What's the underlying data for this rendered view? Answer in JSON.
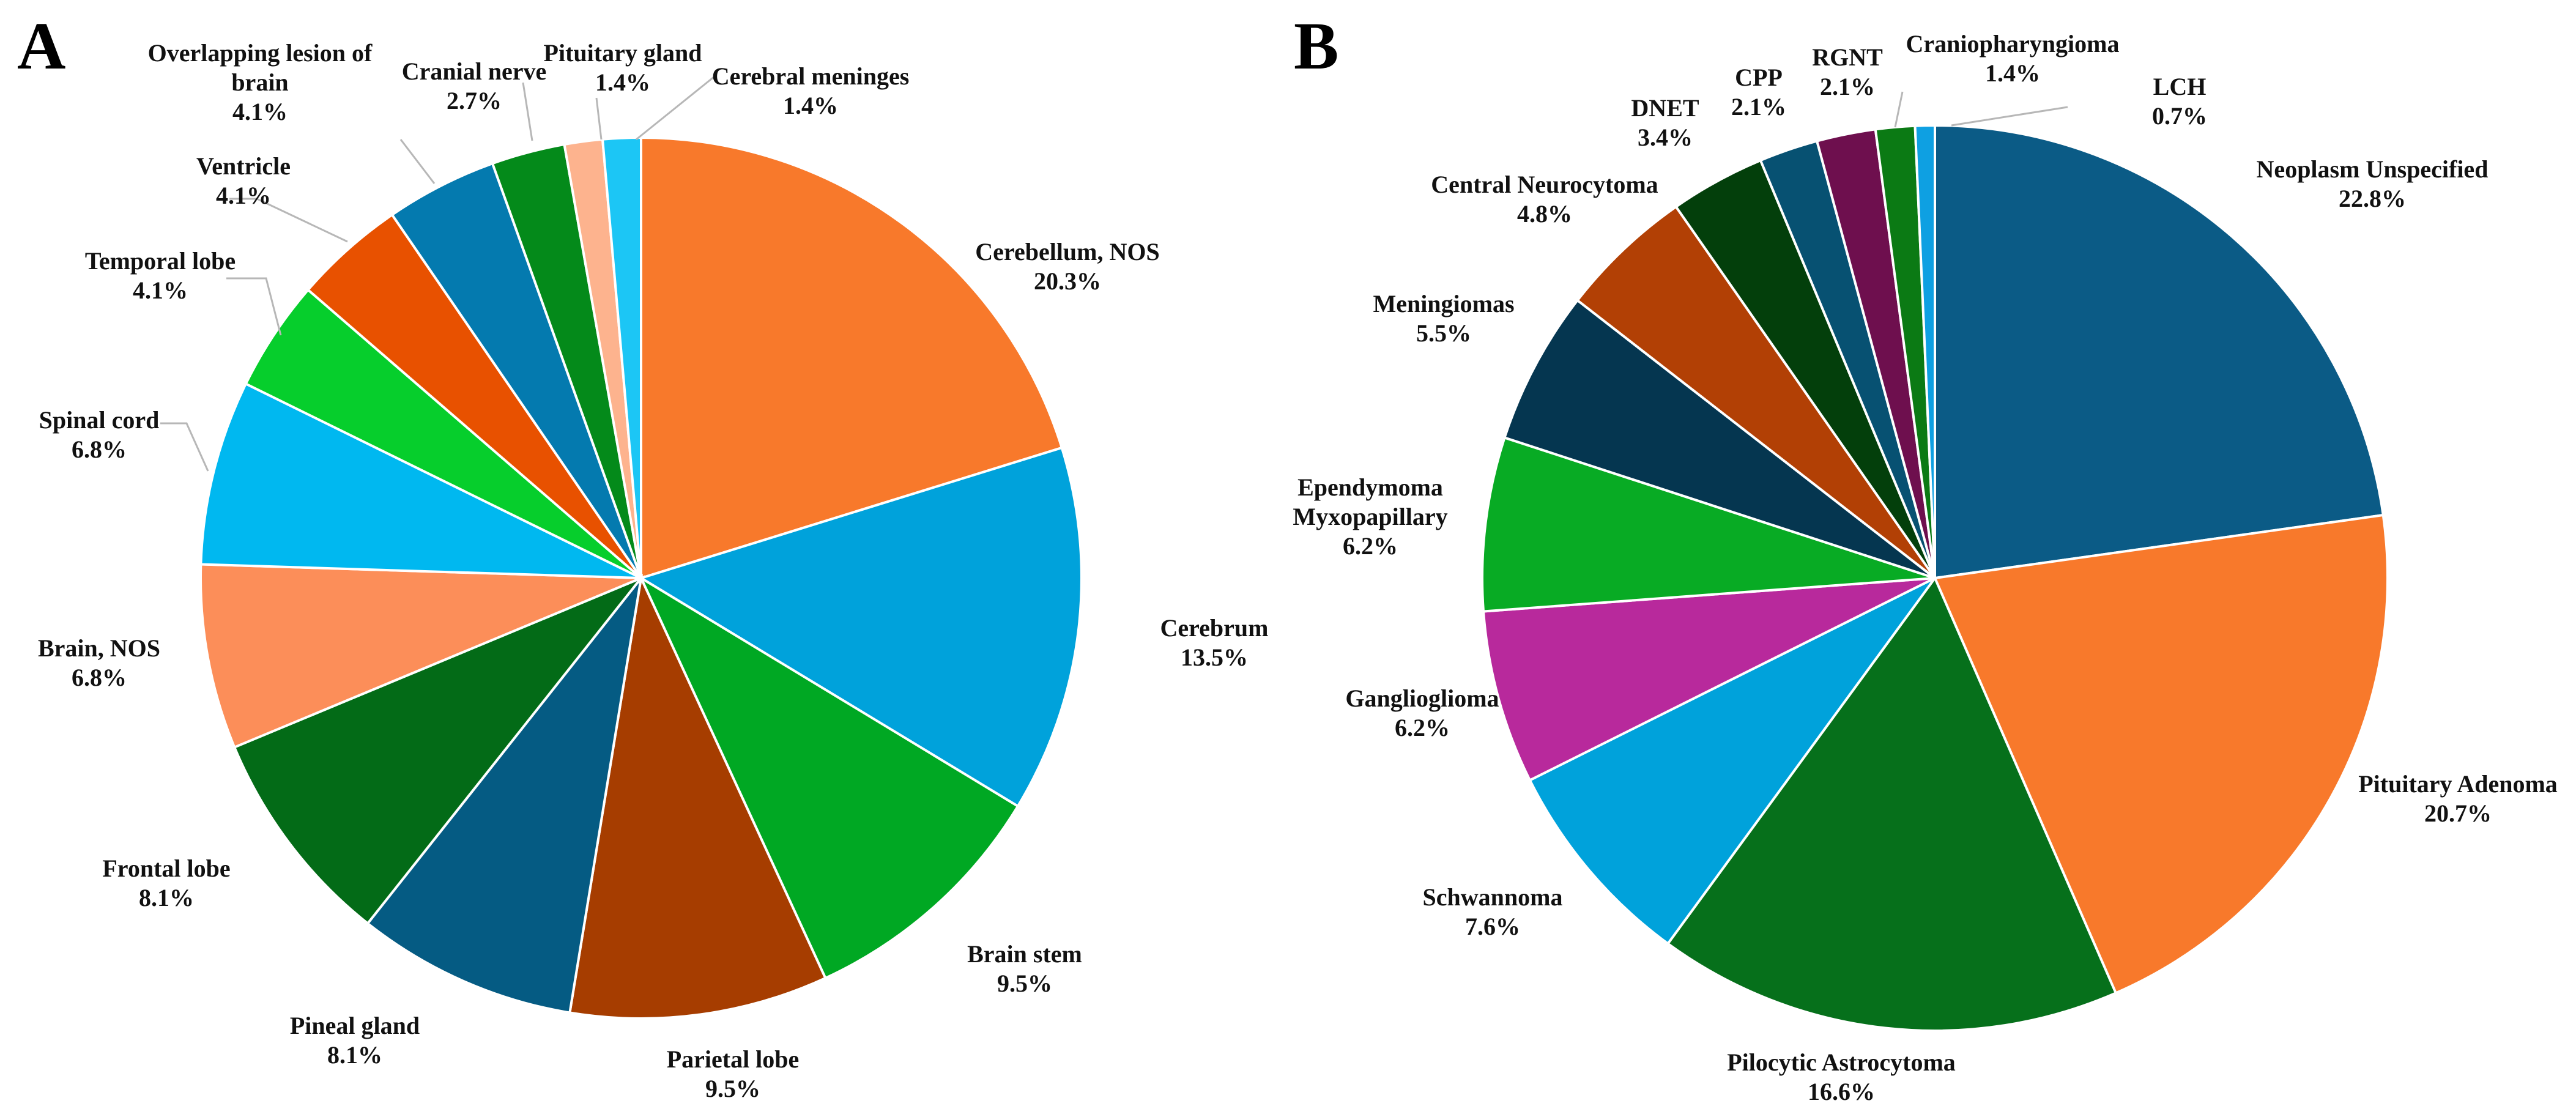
{
  "chart_data": [
    {
      "type": "pie",
      "panel": "A",
      "start_angle_deg": 0,
      "direction": "clockwise",
      "slices": [
        {
          "name": "Cerebellum, NOS",
          "lines": [
            "Cerebellum, NOS",
            "20.3%"
          ],
          "value": 20.3,
          "color": "#F8792B"
        },
        {
          "name": "Cerebrum",
          "lines": [
            "Cerebrum",
            "13.5%"
          ],
          "value": 13.5,
          "color": "#00A2DB"
        },
        {
          "name": "Brain stem",
          "lines": [
            "Brain stem",
            "9.5%"
          ],
          "value": 9.5,
          "color": "#00A823"
        },
        {
          "name": "Parietal lobe",
          "lines": [
            "Parietal lobe",
            "9.5%"
          ],
          "value": 9.5,
          "color": "#A63D00"
        },
        {
          "name": "Pineal gland",
          "lines": [
            "Pineal gland",
            "8.1%"
          ],
          "value": 8.1,
          "color": "#055B83"
        },
        {
          "name": "Frontal lobe",
          "lines": [
            "Frontal lobe",
            "8.1%"
          ],
          "value": 8.1,
          "color": "#036B17"
        },
        {
          "name": "Brain, NOS",
          "lines": [
            "Brain, NOS",
            "6.8%"
          ],
          "value": 6.8,
          "color": "#FC8E59"
        },
        {
          "name": "Spinal cord",
          "lines": [
            "Spinal cord",
            "6.8%"
          ],
          "value": 6.8,
          "color": "#00B8F0"
        },
        {
          "name": "Temporal lobe",
          "lines": [
            "Temporal lobe",
            "4.1%"
          ],
          "value": 4.1,
          "color": "#06CE2C"
        },
        {
          "name": "Ventricle",
          "lines": [
            "Ventricle",
            "4.1%"
          ],
          "value": 4.1,
          "color": "#E85100"
        },
        {
          "name": "Overlapping lesion of brain",
          "lines": [
            "Overlapping lesion of",
            "brain",
            "4.1%"
          ],
          "value": 4.1,
          "color": "#047AAF"
        },
        {
          "name": "Cranial nerve",
          "lines": [
            "Cranial nerve",
            "2.7%"
          ],
          "value": 2.7,
          "color": "#048A1A"
        },
        {
          "name": "Pituitary gland",
          "lines": [
            "Pituitary gland",
            "1.4%"
          ],
          "value": 1.4,
          "color": "#FDB38E"
        },
        {
          "name": "Cerebral meninges",
          "lines": [
            "Cerebral meninges",
            "1.4%"
          ],
          "value": 1.4,
          "color": "#1CC6F5"
        }
      ]
    },
    {
      "type": "pie",
      "panel": "B",
      "start_angle_deg": 0,
      "direction": "clockwise",
      "slices": [
        {
          "name": "Neoplasm Unspecified",
          "lines": [
            "Neoplasm Unspecified",
            "22.8%"
          ],
          "value": 22.8,
          "color": "#0B5B86"
        },
        {
          "name": "Pituitary Adenoma",
          "lines": [
            "Pituitary Adenoma",
            "20.7%"
          ],
          "value": 20.7,
          "color": "#F8792B"
        },
        {
          "name": "Pilocytic Astrocytoma",
          "lines": [
            "Pilocytic Astrocytoma",
            "16.6%"
          ],
          "value": 16.6,
          "color": "#06701B"
        },
        {
          "name": "Schwannoma",
          "lines": [
            "Schwannoma",
            "7.6%"
          ],
          "value": 7.6,
          "color": "#00A2DB"
        },
        {
          "name": "Ganglioglioma",
          "lines": [
            "Ganglioglioma",
            "6.2%"
          ],
          "value": 6.2,
          "color": "#B8299C"
        },
        {
          "name": "Ependymoma Myxopapillary",
          "lines": [
            "Ependymoma",
            "Myxopapillary",
            "6.2%"
          ],
          "value": 6.2,
          "color": "#08AB24"
        },
        {
          "name": "Meningiomas",
          "lines": [
            "Meningiomas",
            "5.5%"
          ],
          "value": 5.5,
          "color": "#053650"
        },
        {
          "name": "Central Neurocytoma",
          "lines": [
            "Central Neurocytoma",
            "4.8%"
          ],
          "value": 4.8,
          "color": "#B24005"
        },
        {
          "name": "DNET",
          "lines": [
            "DNET",
            "3.4%"
          ],
          "value": 3.4,
          "color": "#033F0B"
        },
        {
          "name": "CPP",
          "lines": [
            "CPP",
            "2.1%"
          ],
          "value": 2.1,
          "color": "#075172"
        },
        {
          "name": "RGNT",
          "lines": [
            "RGNT",
            "2.1%"
          ],
          "value": 2.1,
          "color": "#6E0F4E"
        },
        {
          "name": "Craniopharyngioma",
          "lines": [
            "Craniopharyngioma",
            "1.4%"
          ],
          "value": 1.4,
          "color": "#0B7A14"
        },
        {
          "name": "LCH",
          "lines": [
            "LCH",
            "0.7%"
          ],
          "value": 0.7,
          "color": "#0EA0E2"
        }
      ]
    }
  ]
}
